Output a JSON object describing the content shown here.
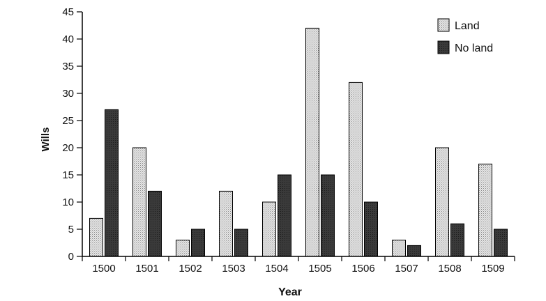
{
  "chart_data": {
    "type": "bar",
    "title": "",
    "xlabel": "Year",
    "ylabel": "Wills",
    "ylim": [
      0,
      45
    ],
    "yticks": [
      0,
      5,
      10,
      15,
      20,
      25,
      30,
      35,
      40,
      45
    ],
    "grid": false,
    "legend_position": "top-right",
    "categories": [
      "1500",
      "1501",
      "1502",
      "1503",
      "1504",
      "1505",
      "1506",
      "1507",
      "1508",
      "1509"
    ],
    "series": [
      {
        "name": "Land",
        "color": "#d8d8d8",
        "values": [
          7,
          20,
          3,
          12,
          10,
          42,
          32,
          3,
          20,
          17
        ]
      },
      {
        "name": "No land",
        "color": "#3a3a3a",
        "values": [
          27,
          12,
          5,
          5,
          15,
          15,
          10,
          2,
          6,
          5
        ]
      }
    ]
  }
}
